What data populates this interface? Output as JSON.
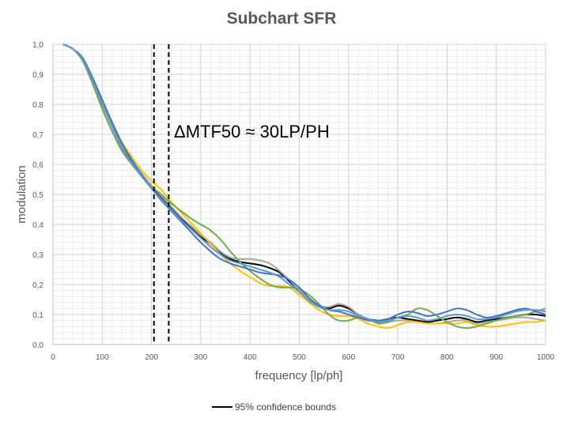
{
  "chart_data": {
    "type": "line",
    "title": "Subchart SFR",
    "xlabel": "frequency [lp/ph]",
    "ylabel": "modulation",
    "xlim": [
      0,
      1000
    ],
    "ylim": [
      0,
      1
    ],
    "grid": true,
    "x_ticks": [
      "0",
      "100",
      "200",
      "300",
      "400",
      "500",
      "600",
      "700",
      "800",
      "900",
      "1000"
    ],
    "y_ticks": [
      "0,0",
      "0,1",
      "0,2",
      "0,3",
      "0,4",
      "0,5",
      "0,6",
      "0,7",
      "0,8",
      "0,9",
      "1,0"
    ],
    "annotation": "ΔMTF50 ≈ 30LP/PH",
    "vlines": [
      {
        "x": 205,
        "style": "dashed",
        "color": "#000000"
      },
      {
        "x": 235,
        "style": "dashed",
        "color": "#000000"
      }
    ],
    "legend": {
      "position": "bottom-center",
      "entries": [
        {
          "label": "95% confidence bounds",
          "color": "#000000"
        }
      ]
    },
    "x": [
      20,
      40,
      60,
      80,
      100,
      120,
      140,
      160,
      180,
      200,
      220,
      240,
      260,
      280,
      300,
      320,
      340,
      360,
      380,
      400,
      420,
      440,
      460,
      480,
      500,
      520,
      540,
      560,
      580,
      600,
      620,
      640,
      660,
      680,
      700,
      720,
      740,
      760,
      780,
      800,
      820,
      840,
      860,
      880,
      900,
      920,
      940,
      960,
      980,
      1000
    ],
    "series": [
      {
        "name": "black",
        "color": "#000000",
        "values": [
          1.0,
          0.985,
          0.95,
          0.88,
          0.8,
          0.73,
          0.66,
          0.61,
          0.565,
          0.525,
          0.49,
          0.455,
          0.42,
          0.39,
          0.36,
          0.335,
          0.305,
          0.285,
          0.275,
          0.27,
          0.265,
          0.255,
          0.24,
          0.21,
          0.18,
          0.15,
          0.13,
          0.12,
          0.13,
          0.12,
          0.1,
          0.085,
          0.08,
          0.085,
          0.09,
          0.085,
          0.08,
          0.075,
          0.08,
          0.085,
          0.09,
          0.085,
          0.075,
          0.08,
          0.085,
          0.09,
          0.095,
          0.1,
          0.1,
          0.095
        ]
      },
      {
        "name": "gray",
        "color": "#a6a6a6",
        "values": [
          1.0,
          0.985,
          0.95,
          0.885,
          0.805,
          0.735,
          0.665,
          0.615,
          0.57,
          0.53,
          0.495,
          0.46,
          0.425,
          0.395,
          0.365,
          0.34,
          0.31,
          0.29,
          0.285,
          0.285,
          0.28,
          0.27,
          0.245,
          0.215,
          0.18,
          0.15,
          0.13,
          0.125,
          0.135,
          0.125,
          0.1,
          0.085,
          0.075,
          0.075,
          0.08,
          0.08,
          0.075,
          0.07,
          0.07,
          0.075,
          0.08,
          0.08,
          0.07,
          0.075,
          0.08,
          0.085,
          0.09,
          0.09,
          0.085,
          0.08
        ]
      },
      {
        "name": "orange",
        "color": "#ffc000",
        "values": [
          1.0,
          0.985,
          0.95,
          0.885,
          0.81,
          0.74,
          0.675,
          0.625,
          0.58,
          0.545,
          0.515,
          0.475,
          0.44,
          0.405,
          0.37,
          0.335,
          0.3,
          0.27,
          0.245,
          0.225,
          0.205,
          0.195,
          0.195,
          0.19,
          0.165,
          0.14,
          0.115,
          0.1,
          0.095,
          0.095,
          0.085,
          0.07,
          0.06,
          0.055,
          0.065,
          0.075,
          0.075,
          0.07,
          0.07,
          0.07,
          0.07,
          0.075,
          0.065,
          0.06,
          0.06,
          0.065,
          0.07,
          0.075,
          0.075,
          0.08
        ]
      },
      {
        "name": "green",
        "color": "#70ad47",
        "values": [
          1.0,
          0.985,
          0.945,
          0.87,
          0.785,
          0.71,
          0.645,
          0.6,
          0.56,
          0.525,
          0.5,
          0.47,
          0.445,
          0.42,
          0.4,
          0.38,
          0.35,
          0.31,
          0.275,
          0.245,
          0.22,
          0.2,
          0.19,
          0.19,
          0.185,
          0.165,
          0.135,
          0.1,
          0.08,
          0.08,
          0.09,
          0.085,
          0.07,
          0.075,
          0.09,
          0.1,
          0.12,
          0.115,
          0.095,
          0.075,
          0.06,
          0.055,
          0.06,
          0.07,
          0.08,
          0.09,
          0.095,
          0.1,
          0.11,
          0.12
        ]
      },
      {
        "name": "blue",
        "color": "#4472c4",
        "values": [
          1.0,
          0.985,
          0.955,
          0.89,
          0.815,
          0.74,
          0.67,
          0.615,
          0.565,
          0.52,
          0.48,
          0.445,
          0.41,
          0.375,
          0.34,
          0.31,
          0.285,
          0.27,
          0.26,
          0.25,
          0.24,
          0.235,
          0.23,
          0.215,
          0.19,
          0.155,
          0.13,
          0.115,
          0.11,
          0.1,
          0.09,
          0.08,
          0.08,
          0.085,
          0.1,
          0.11,
          0.105,
          0.095,
          0.1,
          0.11,
          0.12,
          0.115,
          0.1,
          0.09,
          0.095,
          0.105,
          0.115,
          0.12,
          0.11,
          0.1
        ]
      },
      {
        "name": "light-blue",
        "color": "#5b9bd5",
        "values": [
          1.0,
          0.985,
          0.95,
          0.88,
          0.8,
          0.725,
          0.655,
          0.605,
          0.56,
          0.52,
          0.485,
          0.45,
          0.415,
          0.385,
          0.355,
          0.325,
          0.3,
          0.28,
          0.27,
          0.26,
          0.25,
          0.24,
          0.225,
          0.2,
          0.175,
          0.145,
          0.125,
          0.115,
          0.115,
          0.11,
          0.095,
          0.085,
          0.075,
          0.08,
          0.09,
          0.095,
          0.09,
          0.08,
          0.085,
          0.095,
          0.1,
          0.095,
          0.085,
          0.085,
          0.09,
          0.1,
          0.11,
          0.115,
          0.115,
          0.11
        ]
      }
    ]
  }
}
